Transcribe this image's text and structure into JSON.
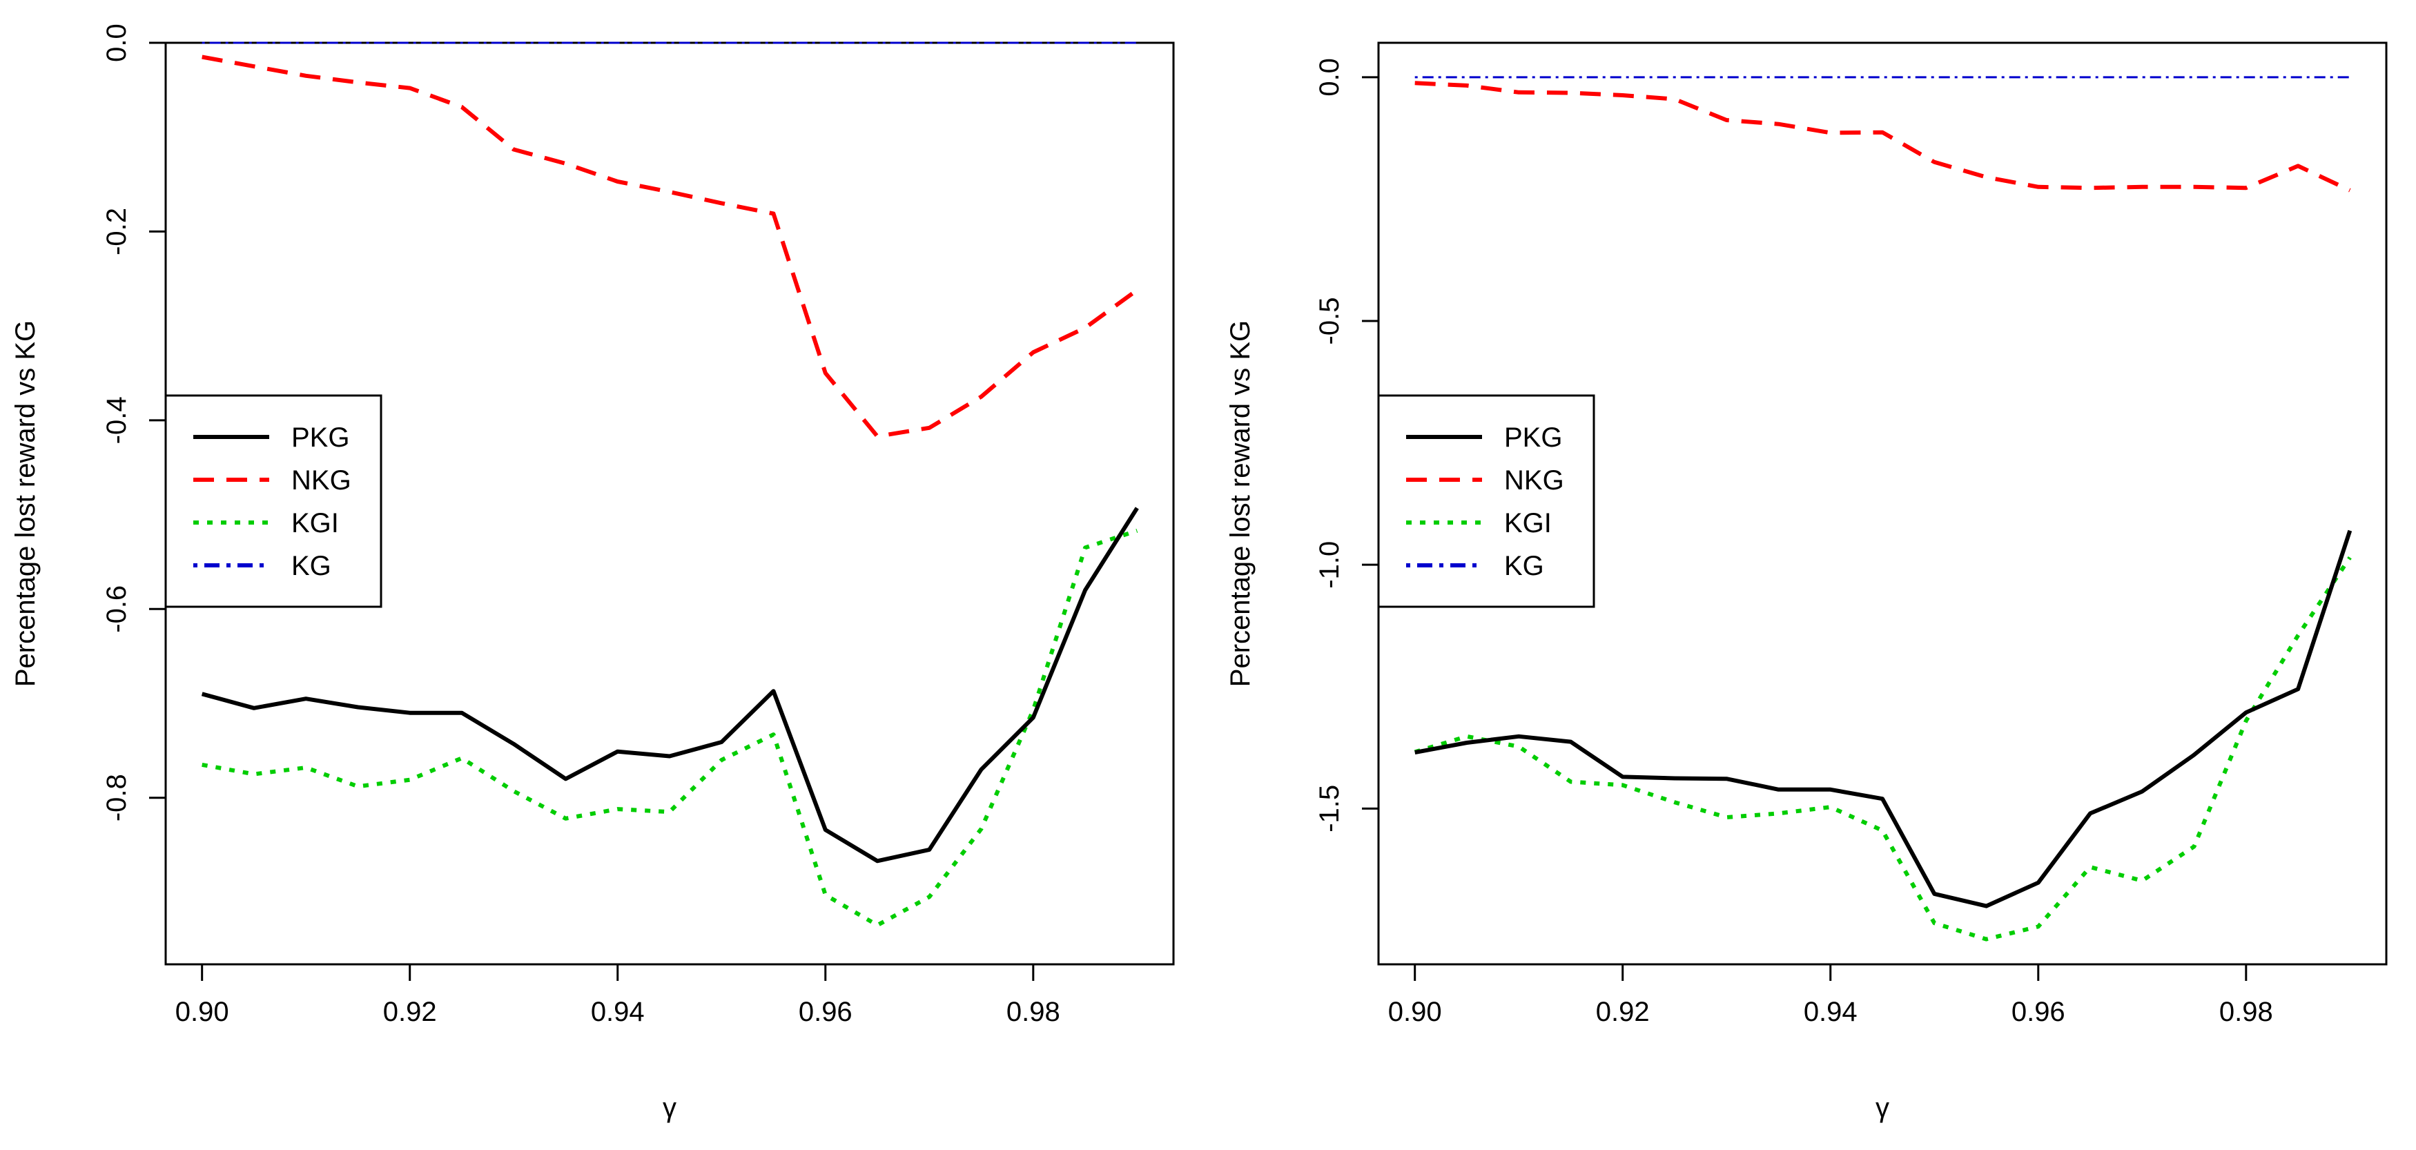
{
  "colors": {
    "PKG": "#000000",
    "NKG": "#ff0000",
    "KGI": "#00cd00",
    "KG": "#0000cd"
  },
  "chart_data": [
    {
      "type": "line",
      "xlabel": "γ",
      "ylabel": "Percentage lost reward vs KG",
      "xlim": [
        0.8965,
        0.9935
      ],
      "ylim": [
        -0.9765,
        0.0
      ],
      "xticks": [
        0.9,
        0.92,
        0.94,
        0.96,
        0.98
      ],
      "xtick_labels": [
        "0.90",
        "0.92",
        "0.94",
        "0.96",
        "0.98"
      ],
      "yticks": [
        0.0,
        -0.2,
        -0.4,
        -0.6,
        -0.8
      ],
      "ytick_labels": [
        "0.0",
        "-0.2",
        "-0.4",
        "-0.6",
        "-0.8"
      ],
      "legend_position": "middle-left",
      "x": [
        0.9,
        0.905,
        0.91,
        0.915,
        0.92,
        0.925,
        0.93,
        0.935,
        0.94,
        0.945,
        0.95,
        0.955,
        0.96,
        0.965,
        0.97,
        0.975,
        0.98,
        0.985,
        0.99
      ],
      "series": [
        {
          "name": "PKG",
          "dash": "solid",
          "values": [
            -0.69,
            -0.705,
            -0.695,
            -0.704,
            -0.71,
            -0.71,
            -0.743,
            -0.78,
            -0.751,
            -0.756,
            -0.741,
            -0.687,
            -0.834,
            -0.867,
            -0.855,
            -0.77,
            -0.715,
            -0.58,
            -0.493
          ]
        },
        {
          "name": "NKG",
          "dash": "dashed",
          "values": [
            -0.015,
            -0.025,
            -0.035,
            -0.042,
            -0.048,
            -0.068,
            -0.113,
            -0.128,
            -0.147,
            -0.158,
            -0.17,
            -0.181,
            -0.35,
            -0.417,
            -0.408,
            -0.375,
            -0.328,
            -0.302,
            -0.262
          ]
        },
        {
          "name": "KGI",
          "dash": "dotted",
          "values": [
            -0.765,
            -0.775,
            -0.768,
            -0.788,
            -0.781,
            -0.758,
            -0.793,
            -0.822,
            -0.812,
            -0.815,
            -0.76,
            -0.733,
            -0.903,
            -0.935,
            -0.905,
            -0.833,
            -0.707,
            -0.535,
            -0.517
          ]
        },
        {
          "name": "KG",
          "dash": "dotdash",
          "values": [
            0.0,
            0.0,
            0.0,
            0.0,
            0.0,
            0.0,
            0.0,
            0.0,
            0.0,
            0.0,
            0.0,
            0.0,
            0.0,
            0.0,
            0.0,
            0.0,
            0.0,
            0.0,
            0.0
          ]
        }
      ]
    },
    {
      "type": "line",
      "xlabel": "γ",
      "ylabel": "Percentage lost reward vs KG",
      "xlim": [
        0.8965,
        0.9935
      ],
      "ylim": [
        -1.8195,
        0.0706
      ],
      "xticks": [
        0.9,
        0.92,
        0.94,
        0.96,
        0.98
      ],
      "xtick_labels": [
        "0.90",
        "0.92",
        "0.94",
        "0.96",
        "0.98"
      ],
      "yticks": [
        0.0,
        -0.5,
        -1.0,
        -1.5
      ],
      "ytick_labels": [
        "0.0",
        "-0.5",
        "-1.0",
        "-1.5"
      ],
      "legend_position": "middle-left",
      "x": [
        0.9,
        0.905,
        0.91,
        0.915,
        0.92,
        0.925,
        0.93,
        0.935,
        0.94,
        0.945,
        0.95,
        0.955,
        0.96,
        0.965,
        0.97,
        0.975,
        0.98,
        0.985,
        0.99
      ],
      "series": [
        {
          "name": "PKG",
          "dash": "solid",
          "values": [
            -1.385,
            -1.365,
            -1.352,
            -1.363,
            -1.435,
            -1.438,
            -1.439,
            -1.461,
            -1.461,
            -1.48,
            -1.675,
            -1.7,
            -1.652,
            -1.51,
            -1.465,
            -1.39,
            -1.303,
            -1.255,
            -0.93
          ]
        },
        {
          "name": "NKG",
          "dash": "dashed",
          "values": [
            -0.012,
            -0.017,
            -0.031,
            -0.032,
            -0.037,
            -0.045,
            -0.088,
            -0.096,
            -0.114,
            -0.113,
            -0.174,
            -0.205,
            -0.225,
            -0.227,
            -0.225,
            -0.225,
            -0.227,
            -0.182,
            -0.232
          ]
        },
        {
          "name": "KGI",
          "dash": "dotted",
          "values": [
            -1.384,
            -1.352,
            -1.373,
            -1.445,
            -1.452,
            -1.487,
            -1.518,
            -1.51,
            -1.497,
            -1.545,
            -1.735,
            -1.768,
            -1.742,
            -1.62,
            -1.648,
            -1.578,
            -1.32,
            -1.145,
            -0.985
          ]
        },
        {
          "name": "KG",
          "dash": "dotdash",
          "values": [
            0.0,
            0.0,
            0.0,
            0.0,
            0.0,
            0.0,
            0.0,
            0.0,
            0.0,
            0.0,
            0.0,
            0.0,
            0.0,
            0.0,
            0.0,
            0.0,
            0.0,
            0.0,
            0.0
          ]
        }
      ]
    }
  ]
}
